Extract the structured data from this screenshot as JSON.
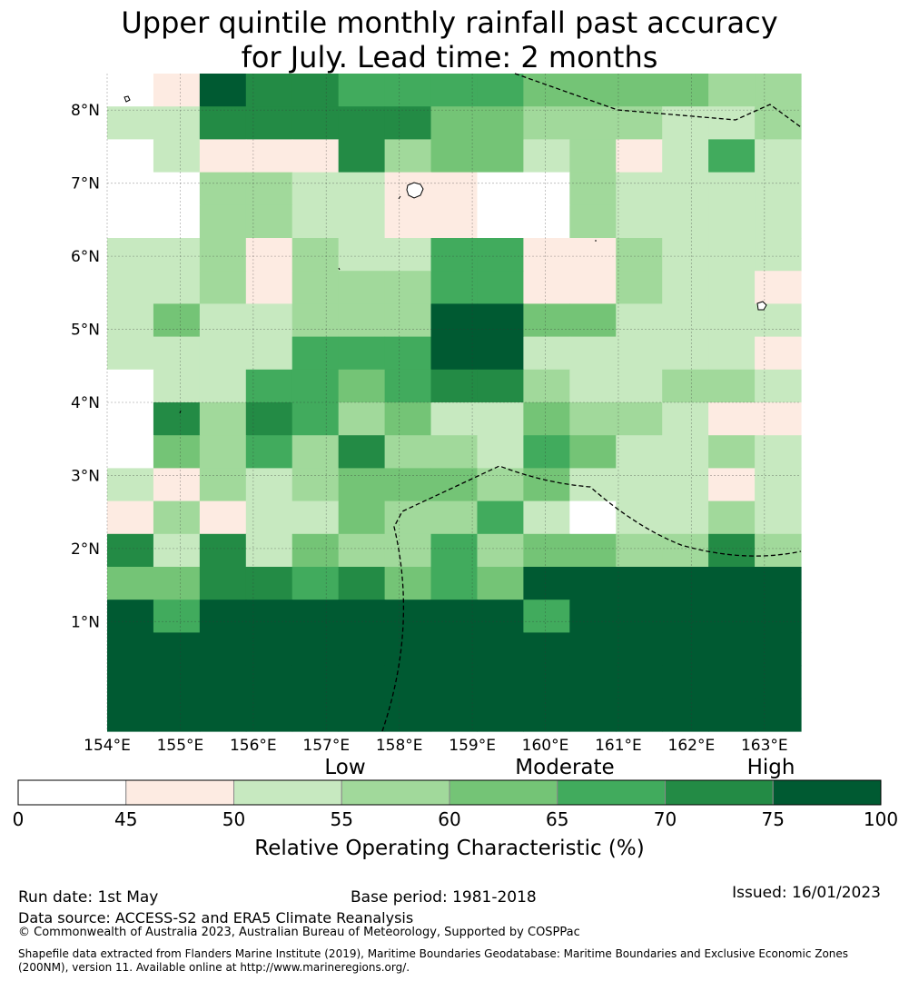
{
  "title": {
    "line1": "Upper quintile monthly rainfall past accuracy",
    "line2": "for July. Lead time: 2 months"
  },
  "map": {
    "lon_labels": [
      "154°E",
      "155°E",
      "156°E",
      "157°E",
      "158°E",
      "159°E",
      "160°E",
      "161°E",
      "162°E",
      "163°E"
    ],
    "lat_labels": [
      "8°N",
      "7°N",
      "6°N",
      "5°N",
      "4°N",
      "3°N",
      "2°N",
      "1°N"
    ],
    "lon_values": [
      154,
      155,
      156,
      157,
      158,
      159,
      160,
      161,
      162,
      163
    ],
    "lat_values": [
      8,
      7,
      6,
      5,
      4,
      3,
      2,
      1
    ],
    "lon_range": [
      154,
      163.5
    ],
    "lat_range": [
      -0.5,
      8.5
    ],
    "class_colors": [
      "#ffffff",
      "#fdebe2",
      "#c7e9c0",
      "#a1d99b",
      "#74c476",
      "#41ab5d",
      "#238b45",
      "#005a32"
    ],
    "grid_rows_north_to_south": [
      "017665555444433",
      "226666644333223",
      "021116344231252",
      "003322110032222",
      "003322110032222",
      "223132255113222",
      "223133355113221",
      "242233377442222",
      "222255577222221",
      "022554566322332",
      "063653422433211",
      "043536332542232",
      "213234443422212",
      "131224335202232",
      "626243353443363",
      "446656454777777",
      "757777777577777",
      "777777777777777",
      "777777777777777",
      "777777777777777"
    ]
  },
  "colorbar": {
    "category_labels": [
      "Low",
      "Moderate",
      "High"
    ],
    "tick_labels": [
      "0",
      "45",
      "50",
      "55",
      "60",
      "65",
      "70",
      "75",
      "100"
    ],
    "title": "Relative Operating Characteristic (%)"
  },
  "footer": {
    "run_date": "Run date: 1st May",
    "base_period": "Base period: 1981-2018",
    "issued": "Issued: 16/01/2023",
    "data_source": "Data source: ACCESS-S2 and ERA5 Climate Reanalysis",
    "copyright": "© Commonwealth of Australia 2023, Australian Bureau of Meteorology, Supported by COSPPac",
    "shapefile_line1": "Shapefile data extracted from Flanders Marine Institute (2019), Maritime Boundaries Geodatabase: Maritime Boundaries and Exclusive Economic Zones",
    "shapefile_line2": "(200NM), version 11. Available online at http://www.marineregions.org/."
  }
}
